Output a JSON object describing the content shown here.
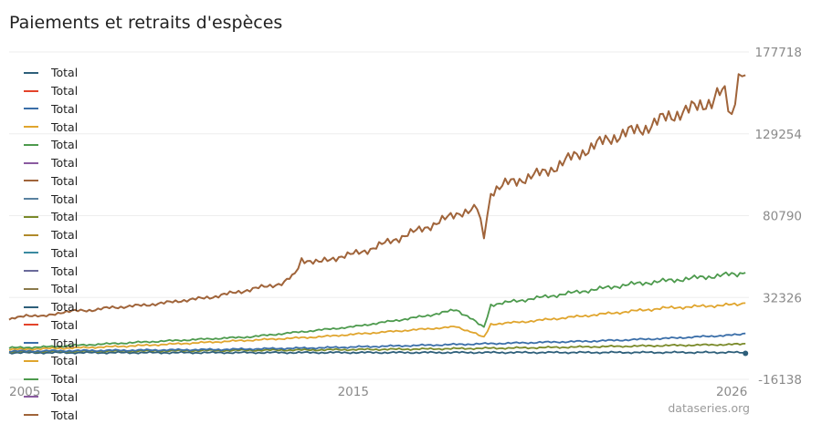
{
  "title": "Paiements et retraits d'espèces",
  "watermark": "dataseries.org",
  "legend": [
    {
      "label": "Total",
      "color": "#2e5f7a"
    },
    {
      "label": "Total",
      "color": "#e3432a"
    },
    {
      "label": "Total",
      "color": "#3a6ea8"
    },
    {
      "label": "Total",
      "color": "#e0a52e"
    },
    {
      "label": "Total",
      "color": "#4d9a4d"
    },
    {
      "label": "Total",
      "color": "#8a5aa0"
    },
    {
      "label": "Total",
      "color": "#a0643a"
    },
    {
      "label": "Total",
      "color": "#5a82a0"
    },
    {
      "label": "Total",
      "color": "#7a8a2a"
    },
    {
      "label": "Total",
      "color": "#b08a2a"
    },
    {
      "label": "Total",
      "color": "#3a8aa0"
    },
    {
      "label": "Total",
      "color": "#6a6a9a"
    },
    {
      "label": "Total",
      "color": "#8a7a4a"
    },
    {
      "label": "Total",
      "color": "#2e5f7a"
    },
    {
      "label": "Total",
      "color": "#e3432a"
    },
    {
      "label": "Total",
      "color": "#3a6ea8"
    },
    {
      "label": "Total",
      "color": "#e0a52e"
    },
    {
      "label": "Total",
      "color": "#4d9a4d"
    },
    {
      "label": "Total",
      "color": "#8a5aa0"
    },
    {
      "label": "Total",
      "color": "#a0643a"
    }
  ],
  "chart_data": {
    "type": "line",
    "title": "Paiements et retraits d'espèces",
    "xlabel": "",
    "ylabel": "",
    "xlim": [
      2005.0,
      2026.5
    ],
    "ylim": [
      -16138,
      177718
    ],
    "y_ticks": [
      -16138,
      32326,
      80790,
      129254,
      177718
    ],
    "x_ticks": [
      2005,
      2015,
      2026
    ],
    "grid": true,
    "legend_position": "left",
    "series": [
      {
        "name": "Total",
        "color": "#a0643a",
        "points": [
          [
            2005.0,
            19000
          ],
          [
            2005.5,
            22000
          ],
          [
            2006.0,
            21000
          ],
          [
            2006.5,
            23500
          ],
          [
            2007.0,
            24500
          ],
          [
            2007.5,
            25000
          ],
          [
            2008.0,
            26500
          ],
          [
            2008.5,
            27000
          ],
          [
            2009.0,
            28000
          ],
          [
            2009.5,
            29000
          ],
          [
            2010.0,
            30500
          ],
          [
            2010.5,
            31500
          ],
          [
            2011.0,
            33000
          ],
          [
            2011.5,
            35000
          ],
          [
            2012.0,
            37000
          ],
          [
            2012.5,
            39000
          ],
          [
            2013.0,
            41000
          ],
          [
            2013.3,
            47000
          ],
          [
            2013.5,
            55000
          ],
          [
            2014.0,
            53000
          ],
          [
            2014.5,
            56000
          ],
          [
            2015.0,
            58000
          ],
          [
            2015.5,
            61000
          ],
          [
            2016.0,
            65000
          ],
          [
            2016.5,
            69000
          ],
          [
            2017.0,
            73000
          ],
          [
            2017.5,
            77000
          ],
          [
            2018.0,
            82000
          ],
          [
            2018.6,
            86000
          ],
          [
            2018.8,
            69000
          ],
          [
            2019.0,
            95000
          ],
          [
            2019.5,
            100000
          ],
          [
            2020.0,
            103000
          ],
          [
            2020.5,
            106000
          ],
          [
            2021.0,
            111000
          ],
          [
            2021.5,
            117000
          ],
          [
            2022.0,
            122000
          ],
          [
            2022.5,
            127000
          ],
          [
            2023.0,
            130000
          ],
          [
            2023.5,
            133000
          ],
          [
            2024.0,
            138000
          ],
          [
            2024.5,
            142000
          ],
          [
            2025.0,
            145000
          ],
          [
            2025.5,
            150000
          ],
          [
            2025.8,
            157000
          ],
          [
            2026.0,
            138000
          ],
          [
            2026.2,
            160000
          ],
          [
            2026.4,
            164000
          ]
        ]
      },
      {
        "name": "Total",
        "color": "#4d9a4d",
        "points": [
          [
            2005.0,
            2500
          ],
          [
            2006.0,
            3000
          ],
          [
            2007.0,
            4000
          ],
          [
            2008.0,
            5000
          ],
          [
            2009.0,
            6000
          ],
          [
            2010.0,
            7000
          ],
          [
            2011.0,
            8000
          ],
          [
            2012.0,
            9000
          ],
          [
            2013.0,
            11000
          ],
          [
            2014.0,
            13000
          ],
          [
            2015.0,
            15000
          ],
          [
            2016.0,
            18000
          ],
          [
            2017.0,
            21000
          ],
          [
            2018.0,
            25000
          ],
          [
            2018.8,
            15000
          ],
          [
            2019.0,
            28000
          ],
          [
            2020.0,
            31000
          ],
          [
            2021.0,
            34000
          ],
          [
            2022.0,
            37000
          ],
          [
            2023.0,
            40000
          ],
          [
            2024.0,
            42000
          ],
          [
            2025.0,
            44000
          ],
          [
            2026.0,
            46000
          ],
          [
            2026.4,
            47000
          ]
        ]
      },
      {
        "name": "Total",
        "color": "#e0a52e",
        "points": [
          [
            2005.0,
            1500
          ],
          [
            2006.0,
            2000
          ],
          [
            2007.0,
            2500
          ],
          [
            2008.0,
            3200
          ],
          [
            2009.0,
            4000
          ],
          [
            2010.0,
            5000
          ],
          [
            2011.0,
            6000
          ],
          [
            2012.0,
            7000
          ],
          [
            2013.0,
            8000
          ],
          [
            2014.0,
            9000
          ],
          [
            2015.0,
            10500
          ],
          [
            2016.0,
            12000
          ],
          [
            2017.0,
            13500
          ],
          [
            2018.0,
            15000
          ],
          [
            2018.8,
            9000
          ],
          [
            2019.0,
            16500
          ],
          [
            2020.0,
            18000
          ],
          [
            2021.0,
            20000
          ],
          [
            2022.0,
            22000
          ],
          [
            2023.0,
            24000
          ],
          [
            2024.0,
            26000
          ],
          [
            2025.0,
            27000
          ],
          [
            2026.0,
            28000
          ],
          [
            2026.4,
            29000
          ]
        ]
      },
      {
        "name": "Total",
        "color": "#3a6ea8",
        "points": [
          [
            2005.0,
            500
          ],
          [
            2008.0,
            1000
          ],
          [
            2011.0,
            1500
          ],
          [
            2014.0,
            2500
          ],
          [
            2016.0,
            3500
          ],
          [
            2018.0,
            4500
          ],
          [
            2020.0,
            5500
          ],
          [
            2022.0,
            6500
          ],
          [
            2024.0,
            8000
          ],
          [
            2026.0,
            10000
          ],
          [
            2026.4,
            11000
          ]
        ]
      },
      {
        "name": "Total",
        "color": "#7a8a2a",
        "points": [
          [
            2005.0,
            300
          ],
          [
            2008.0,
            600
          ],
          [
            2011.0,
            900
          ],
          [
            2014.0,
            1300
          ],
          [
            2017.0,
            1800
          ],
          [
            2020.0,
            2500
          ],
          [
            2023.0,
            3500
          ],
          [
            2026.0,
            4500
          ],
          [
            2026.4,
            5000
          ]
        ]
      },
      {
        "name": "Total",
        "color": "#2e5f7a",
        "points": [
          [
            2005.0,
            -400
          ],
          [
            2010.0,
            -350
          ],
          [
            2015.0,
            -300
          ],
          [
            2020.0,
            -250
          ],
          [
            2025.0,
            -200
          ],
          [
            2026.4,
            -200
          ]
        ]
      }
    ]
  }
}
